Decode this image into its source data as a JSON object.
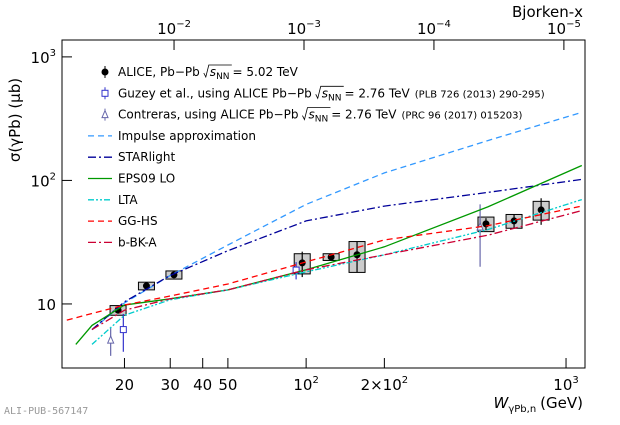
{
  "chart_data": {
    "type": "line",
    "log_x": true,
    "log_y": true,
    "y_label": "σ(γPb) (μb)",
    "x_label": {
      "main": "W",
      "sub": "γPb,n",
      "unit": "(GeV)"
    },
    "x2_label": "Bjorken-x",
    "watermark": "ALI-PUB-567147",
    "sqrt_s": "s",
    "sqrt_sub": "NN",
    "xlim": [
      11.5,
      1183
    ],
    "ylim": [
      3.03,
      1370
    ],
    "x2lim": [
      0.0728,
      6.88e-06
    ],
    "xticks": [
      20,
      30,
      40,
      50,
      {
        "value": 100,
        "label": "10",
        "sup": "2"
      },
      {
        "value": 200,
        "label": "2×10",
        "sup": "2"
      },
      {
        "value": 1000,
        "label": "10",
        "sup": "3"
      }
    ],
    "yticks": [
      10,
      {
        "value": 100,
        "label": "10",
        "sup": "2"
      },
      {
        "value": 1000,
        "label": "10",
        "sup": "3"
      }
    ],
    "x2ticks": [
      {
        "value": 0.01,
        "label": "10",
        "sup": "−2"
      },
      {
        "value": 0.001,
        "label": "10",
        "sup": "−3"
      },
      {
        "value": 0.0001,
        "label": "10",
        "sup": "−4"
      },
      {
        "value": 1e-05,
        "label": "10",
        "sup": "−5"
      }
    ],
    "series": [
      {
        "name": "ALICE, Pb−Pb",
        "name_suffix": "= 5.02 TeV",
        "kind": "points",
        "marker": "circle",
        "color": "#000000",
        "x": [
          18.9,
          24.3,
          31.0,
          96.6,
          124.8,
          157,
          492,
          631,
          802
        ],
        "values": [
          8.9,
          14.0,
          17.2,
          21.5,
          24.0,
          25.0,
          44.5,
          47.0,
          57.7
        ],
        "errors": [
          0.5,
          0.5,
          0.6,
          5,
          1,
          7,
          5,
          6,
          14
        ],
        "syst": [
          0.8,
          1.0,
          1.3,
          4,
          1.5,
          7,
          6,
          6,
          10
        ]
      },
      {
        "name": "Guzey et al., using ALICE Pb−Pb",
        "name_suffix": "= 2.76 TeV",
        "name_note": "(PLB 726 (2013) 290-295)",
        "kind": "points",
        "marker": "square",
        "color": "#3333cc",
        "x": [
          19.8,
          91.5
        ],
        "values": [
          6.2,
          18.8
        ],
        "errors": [
          2.1,
          3
        ]
      },
      {
        "name": "Contreras, using ALICE Pb−Pb",
        "name_suffix": "= 2.76 TeV",
        "name_note": "(PRC 96 (2017) 015203)",
        "kind": "points",
        "marker": "triangle",
        "color": "#6666aa",
        "x": [
          17.7,
          467
        ],
        "values": [
          5.1,
          42
        ],
        "errors": [
          1.3,
          22
        ]
      },
      {
        "name": "Impulse approximation",
        "kind": "curve",
        "style": "dashed",
        "color": "#3399ff",
        "x": [
          15,
          20,
          30,
          50,
          100,
          200,
          500,
          1150
        ],
        "values": [
          6.2,
          10.2,
          17,
          30,
          64,
          115,
          210,
          355
        ]
      },
      {
        "name": "STARlight",
        "kind": "curve",
        "style": "dashdot",
        "color": "#000099",
        "x": [
          15,
          20,
          30,
          50,
          100,
          200,
          500,
          1150
        ],
        "values": [
          6.2,
          10.4,
          17,
          27,
          47,
          62,
          80,
          102
        ]
      },
      {
        "name": "EPS09 LO",
        "kind": "curve",
        "style": "solid",
        "color": "#009900",
        "x": [
          13,
          15,
          20,
          30,
          50,
          100,
          200,
          500,
          1150
        ],
        "values": [
          4.7,
          6.7,
          9.8,
          11,
          13,
          18.9,
          29,
          61,
          132
        ]
      },
      {
        "name": "LTA",
        "kind": "curve",
        "style": "dashdotdot",
        "color": "#00cccc",
        "x": [
          15,
          20,
          30,
          50,
          100,
          200,
          500,
          1150
        ],
        "values": [
          4.7,
          8.1,
          10.8,
          13,
          18.2,
          25,
          40,
          70
        ]
      },
      {
        "name": "GG-HS",
        "kind": "curve",
        "style": "dashed",
        "color": "#ff0000",
        "x": [
          12,
          20,
          30,
          50,
          100,
          200,
          500,
          1150
        ],
        "values": [
          7.4,
          9.8,
          11.6,
          14.5,
          21.9,
          33,
          43,
          62
        ]
      },
      {
        "name": "b-BK-A",
        "kind": "curve",
        "style": "dashdot",
        "color": "#cc0033",
        "x": [
          15,
          20,
          30,
          50,
          100,
          200,
          500,
          1150
        ],
        "values": [
          6.2,
          8.9,
          11,
          13,
          18.9,
          25,
          36,
          57
        ]
      }
    ]
  }
}
